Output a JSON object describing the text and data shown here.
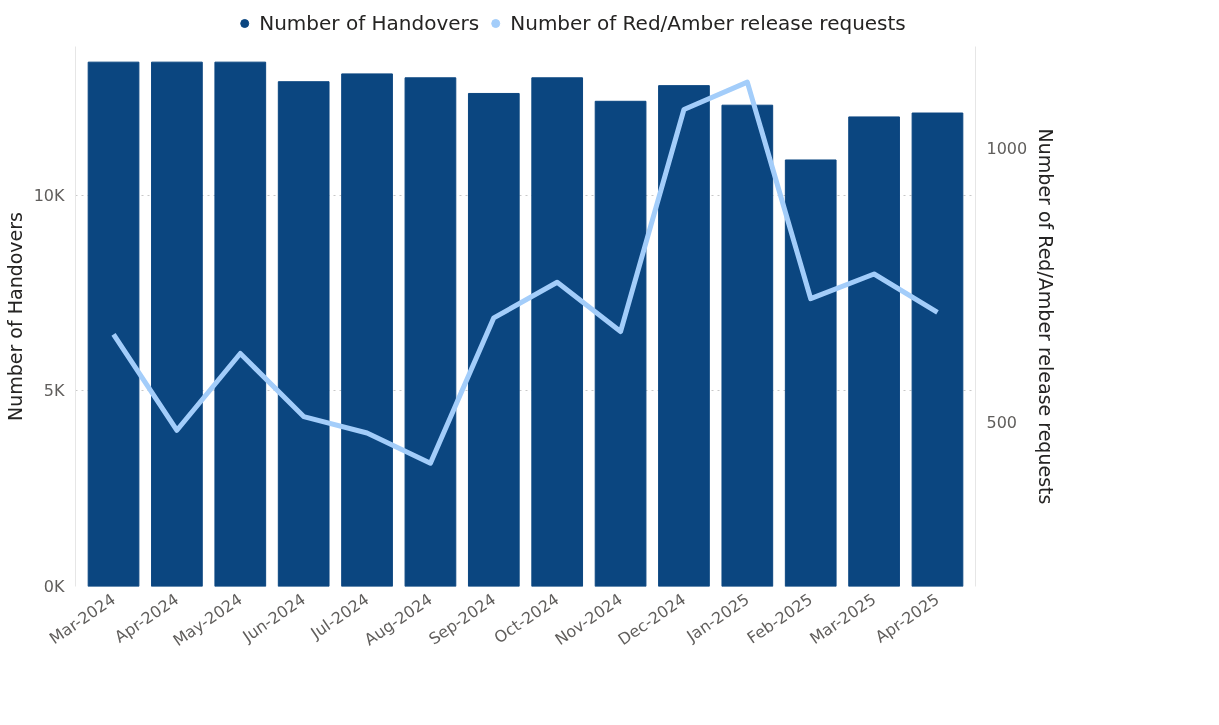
{
  "chart_data": {
    "type": "bar",
    "categories": [
      "Mar-2024",
      "Apr-2024",
      "May-2024",
      "Jun-2024",
      "Jul-2024",
      "Aug-2024",
      "Sep-2024",
      "Oct-2024",
      "Nov-2024",
      "Dec-2024",
      "Jan-2025",
      "Feb-2025",
      "Mar-2025",
      "Apr-2025"
    ],
    "ylabel": "Number of Handovers",
    "y2label": "Number of Red/Amber release requests",
    "ylim": [
      0,
      13800
    ],
    "yticks": [
      {
        "value": 0,
        "label": "0K"
      },
      {
        "value": 5000,
        "label": "5K"
      },
      {
        "value": 10000,
        "label": "10K"
      }
    ],
    "y2lim": [
      200,
      1185
    ],
    "y2ticks": [
      500,
      1000
    ],
    "grid": "y",
    "legend": "top",
    "series": [
      {
        "name": "Number of Handovers",
        "type": "bar",
        "color": "#0b4680",
        "values": [
          13400,
          13400,
          13400,
          12900,
          13100,
          13000,
          12600,
          13000,
          12400,
          12800,
          12300,
          10900,
          12000,
          12100
        ]
      },
      {
        "name": "Number of Red/Amber release requests",
        "type": "line",
        "axis": "y2",
        "color": "#a3cdfa",
        "values": [
          660,
          485,
          625,
          510,
          480,
          425,
          690,
          755,
          665,
          1070,
          1120,
          725,
          770,
          700
        ]
      }
    ]
  }
}
